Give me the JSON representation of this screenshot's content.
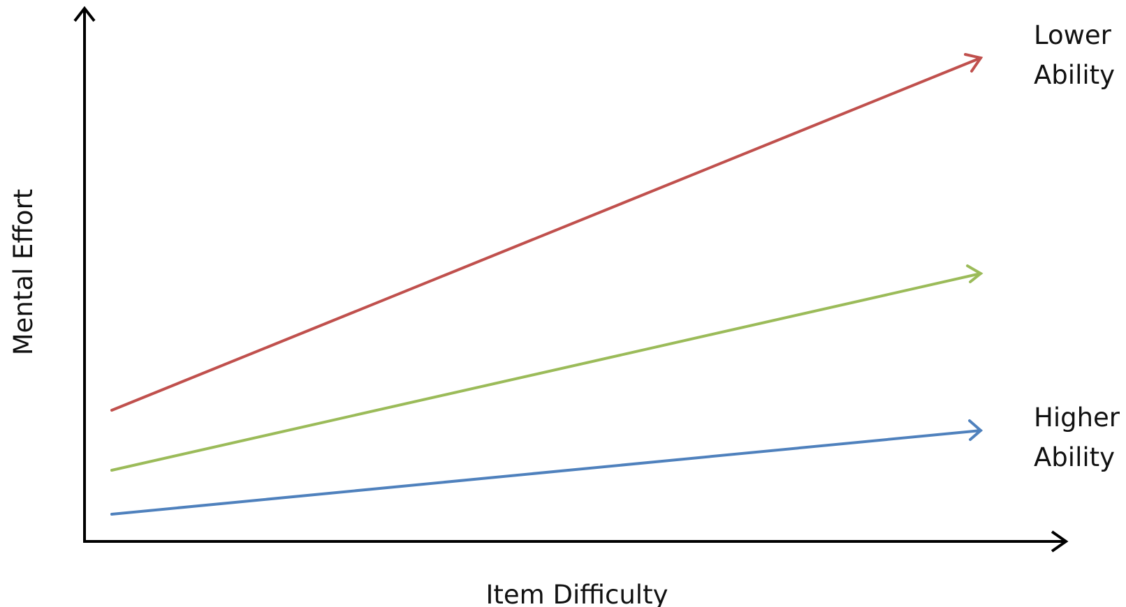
{
  "diagram": {
    "x_axis_label": "Item Difficulty",
    "y_axis_label": "Mental Effort",
    "top_annotation": [
      "Lower",
      "Ability"
    ],
    "bottom_annotation": [
      "Higher",
      "Ability"
    ]
  },
  "lines": [
    {
      "id": "lower-ability",
      "color": "#c0504d"
    },
    {
      "id": "middle-ability",
      "color": "#9bbb59"
    },
    {
      "id": "higher-ability",
      "color": "#4f81bd"
    }
  ],
  "axis_color": "#000000"
}
